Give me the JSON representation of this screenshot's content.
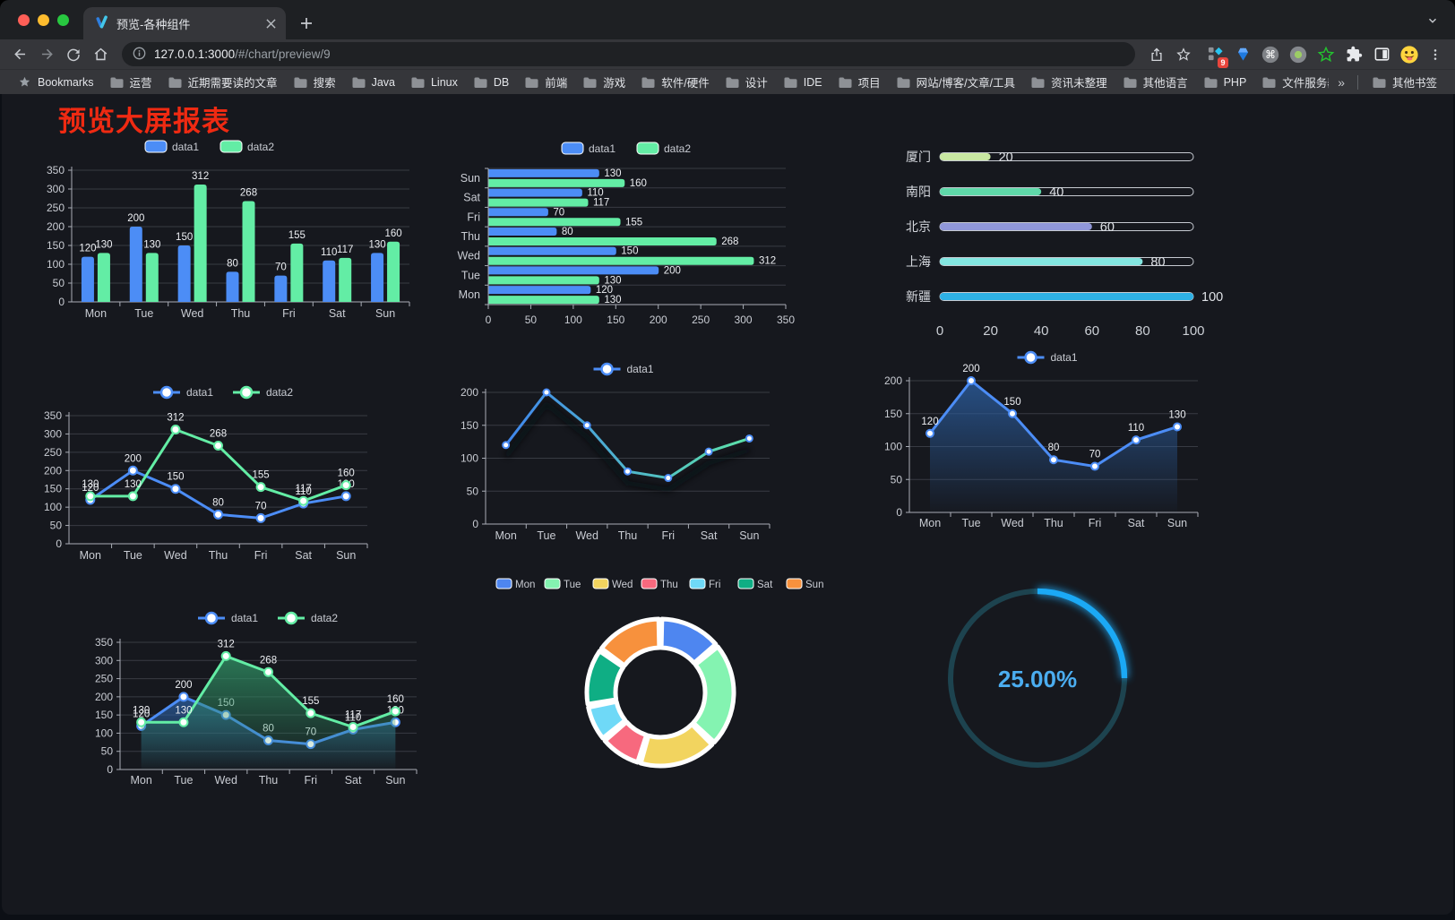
{
  "browser": {
    "tab": {
      "title": "预览-各种组件"
    },
    "address": {
      "url_host": "127.0.0.1:3000",
      "url_path": "/#/chart/preview/9"
    },
    "extension_badge": "9",
    "bookmarks_bar": {
      "root_label": "Bookmarks",
      "folders": [
        "运营",
        "近期需要读的文章",
        "搜索",
        "Java",
        "Linux",
        "DB",
        "前端",
        "游戏",
        "软件/硬件",
        "设计",
        "IDE",
        "项目",
        "网站/博客/文章/工具",
        "资讯未整理",
        "其他语言",
        "PHP",
        "文件服务器"
      ],
      "overflow": "»",
      "other": "其他书签"
    }
  },
  "page": {
    "title": "预览大屏报表",
    "title_color": "#ef2a12"
  },
  "chart_data": [
    {
      "id": "bar-vertical",
      "type": "bar",
      "categories": [
        "Mon",
        "Tue",
        "Wed",
        "Thu",
        "Fri",
        "Sat",
        "Sun"
      ],
      "series": [
        {
          "name": "data1",
          "color": "#4C8DF6",
          "values": [
            120,
            200,
            150,
            80,
            70,
            110,
            130
          ]
        },
        {
          "name": "data2",
          "color": "#63EDA5",
          "values": [
            130,
            130,
            312,
            268,
            155,
            117,
            160
          ]
        }
      ],
      "ylim": [
        0,
        350
      ],
      "ytick_step": 50,
      "legend_position": "top",
      "grid": true,
      "data_labels": true
    },
    {
      "id": "bar-horizontal",
      "type": "bar",
      "variant": "horizontal",
      "categories": [
        "Mon",
        "Tue",
        "Wed",
        "Thu",
        "Fri",
        "Sat",
        "Sun"
      ],
      "series": [
        {
          "name": "data1",
          "color": "#4C8DF6",
          "values": [
            120,
            200,
            150,
            80,
            70,
            110,
            130
          ]
        },
        {
          "name": "data2",
          "color": "#63EDA5",
          "values": [
            130,
            130,
            312,
            268,
            155,
            117,
            160
          ]
        }
      ],
      "xlim": [
        0,
        350
      ],
      "xtick_step": 50,
      "legend_position": "top",
      "grid": true,
      "data_labels": true
    },
    {
      "id": "progress",
      "type": "bar",
      "variant": "progress",
      "items": [
        {
          "label": "厦门",
          "value": 20,
          "color": "#C9E8A2"
        },
        {
          "label": "南阳",
          "value": 40,
          "color": "#5FD8A9"
        },
        {
          "label": "北京",
          "value": 60,
          "color": "#9097D9"
        },
        {
          "label": "上海",
          "value": 80,
          "color": "#83E6E1"
        },
        {
          "label": "新疆",
          "value": 100,
          "color": "#2EB1E5"
        }
      ],
      "max": 100,
      "axis_ticks": [
        0,
        20,
        40,
        60,
        80,
        100
      ]
    },
    {
      "id": "line-two",
      "type": "line",
      "categories": [
        "Mon",
        "Tue",
        "Wed",
        "Thu",
        "Fri",
        "Sat",
        "Sun"
      ],
      "series": [
        {
          "name": "data1",
          "color": "#4C8DF6",
          "values": [
            120,
            200,
            150,
            80,
            70,
            110,
            130
          ]
        },
        {
          "name": "data2",
          "color": "#63EDA5",
          "values": [
            130,
            130,
            312,
            268,
            155,
            117,
            160
          ]
        }
      ],
      "ylim": [
        0,
        350
      ],
      "ytick_step": 50,
      "legend_position": "top",
      "data_labels": true
    },
    {
      "id": "line-gradient",
      "type": "line",
      "categories": [
        "Mon",
        "Tue",
        "Wed",
        "Thu",
        "Fri",
        "Sat",
        "Sun"
      ],
      "series": [
        {
          "name": "data1",
          "color": "#4C8DF6",
          "gradient": [
            "#3D7EF2",
            "#4FB6CC",
            "#5FE9A2"
          ],
          "values": [
            120,
            200,
            150,
            80,
            70,
            110,
            130
          ]
        }
      ],
      "ylim": [
        0,
        200
      ],
      "ytick_step": 50,
      "legend_position": "top",
      "data_labels": false,
      "shadow": true
    },
    {
      "id": "area-single",
      "type": "area",
      "categories": [
        "Mon",
        "Tue",
        "Wed",
        "Thu",
        "Fri",
        "Sat",
        "Sun"
      ],
      "series": [
        {
          "name": "data1",
          "color": "#4C8DF6",
          "area_color": "#2b5d9e",
          "values": [
            120,
            200,
            150,
            80,
            70,
            110,
            130
          ]
        }
      ],
      "ylim": [
        0,
        200
      ],
      "ytick_step": 50,
      "legend_position": "top",
      "data_labels": true
    },
    {
      "id": "line-area-two",
      "type": "area",
      "categories": [
        "Mon",
        "Tue",
        "Wed",
        "Thu",
        "Fri",
        "Sat",
        "Sun"
      ],
      "series": [
        {
          "name": "data1",
          "color": "#4C8DF6",
          "area_color": "#2b5d9e",
          "values": [
            120,
            200,
            150,
            80,
            70,
            110,
            130
          ]
        },
        {
          "name": "data2",
          "color": "#63EDA5",
          "area_color": "#2f8f63",
          "values": [
            130,
            130,
            312,
            268,
            155,
            117,
            160
          ]
        }
      ],
      "ylim": [
        0,
        350
      ],
      "ytick_step": 50,
      "legend_position": "top",
      "data_labels": true
    },
    {
      "id": "donut",
      "type": "pie",
      "categories": [
        "Mon",
        "Tue",
        "Wed",
        "Thu",
        "Fri",
        "Sat",
        "Sun"
      ],
      "values": [
        120,
        200,
        150,
        80,
        70,
        110,
        130
      ],
      "colors": [
        "#4E86F0",
        "#84F3B1",
        "#F2D45F",
        "#F7697E",
        "#6FD9F7",
        "#0FAE84",
        "#F7913D"
      ],
      "inner_radius_ratio": 0.61,
      "legend_position": "top"
    },
    {
      "id": "gauge",
      "type": "gauge",
      "value": 25,
      "label": "25.00%",
      "color": "#1BA9F5",
      "track_color": "#1D434F",
      "text_color": "#4BADF0"
    }
  ]
}
